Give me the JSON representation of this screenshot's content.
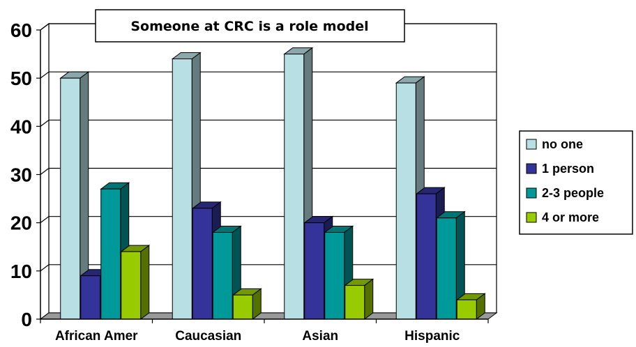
{
  "chart_data": {
    "type": "bar",
    "title": "Someone at CRC is a role model",
    "categories": [
      "African Amer",
      "Caucasian",
      "Asian",
      "Hispanic"
    ],
    "series": [
      {
        "name": "no one",
        "color": "#b8e0e4",
        "values": [
          50,
          54,
          55,
          49
        ]
      },
      {
        "name": "1 person",
        "color": "#333399",
        "values": [
          9,
          23,
          20,
          26
        ]
      },
      {
        "name": "2-3 people",
        "color": "#009999",
        "values": [
          27,
          18,
          18,
          21
        ]
      },
      {
        "name": "4 or more",
        "color": "#99cc00",
        "values": [
          14,
          5,
          7,
          4
        ]
      }
    ],
    "ylim": [
      0,
      60
    ],
    "yticks": [
      "0",
      "10",
      "20",
      "30",
      "40",
      "50",
      "60"
    ],
    "grid": true,
    "legend_position": "right",
    "style": "3d-clustered-bar"
  }
}
